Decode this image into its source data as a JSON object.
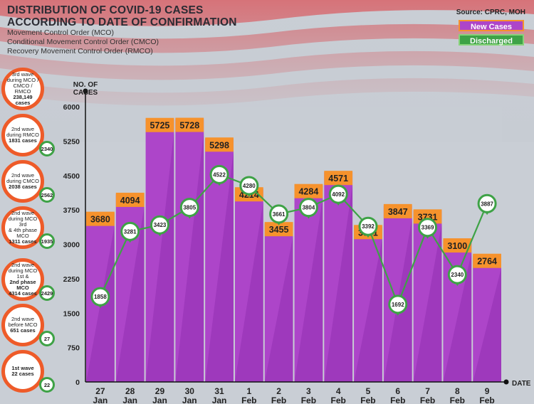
{
  "header": {
    "title_line1": "DISTRIBUTION OF COVID-19 CASES",
    "title_line2": "ACCORDING TO DATE OF CONFIRMATION",
    "sub1": "Movement Control Order (MCO)",
    "sub2": "Conditional Movement Control Order (CMCO)",
    "sub3": "Recovery Movement Control Order (RMCO)"
  },
  "source": "Source: CPRC, MOH",
  "colors": {
    "new": "#ad45c9",
    "new_border": "#f6922c",
    "discharged": "#3ea246"
  },
  "waves": [
    {
      "lines": [
        "3rd wave",
        "during MCO /",
        "CMCO / RMCO",
        "238,149",
        "cases"
      ],
      "badge": ""
    },
    {
      "lines": [
        "2nd wave",
        "during RMCO",
        "1831 cases"
      ],
      "badge": "2340"
    },
    {
      "lines": [
        "2nd wave",
        "during CMCO",
        "2038 cases"
      ],
      "badge": "2562"
    },
    {
      "lines": [
        "2nd wave",
        "during MCO 3rd",
        "& 4th phase MCO",
        "1311 cases"
      ],
      "badge": "1935"
    },
    {
      "lines": [
        "2nd wave",
        "during MCO 1st &",
        "2nd phase MCO",
        "4314 cases"
      ],
      "badge": "2429"
    },
    {
      "lines": [
        "2nd wave",
        "before MCO",
        "651 cases"
      ],
      "badge": "27"
    },
    {
      "lines": [
        "1st wave",
        "22 cases"
      ],
      "badge": "22"
    }
  ],
  "chart_data": {
    "type": "bar",
    "ylabel": "NO. OF CASES",
    "xlabel": "DATE",
    "ylim": [
      0,
      6000
    ],
    "yticks": [
      0,
      750,
      1500,
      2250,
      3000,
      3750,
      4500,
      5250,
      6000
    ],
    "categories": [
      [
        "27",
        "Jan"
      ],
      [
        "28",
        "Jan"
      ],
      [
        "29",
        "Jan"
      ],
      [
        "30",
        "Jan"
      ],
      [
        "31",
        "Jan"
      ],
      [
        "1",
        "Feb"
      ],
      [
        "2",
        "Feb"
      ],
      [
        "3",
        "Feb"
      ],
      [
        "4",
        "Feb"
      ],
      [
        "5",
        "Feb"
      ],
      [
        "6",
        "Feb"
      ],
      [
        "7",
        "Feb"
      ],
      [
        "8",
        "Feb"
      ],
      [
        "9",
        "Feb"
      ]
    ],
    "series": [
      {
        "name": "New Cases",
        "type": "bar",
        "values": [
          3680,
          4094,
          5725,
          5728,
          5298,
          4214,
          3455,
          4284,
          4571,
          3391,
          3847,
          3731,
          3100,
          2764
        ]
      },
      {
        "name": "Discharged",
        "type": "line",
        "values": [
          1858,
          3281,
          3423,
          3805,
          4522,
          4280,
          3661,
          3804,
          4092,
          3392,
          1692,
          3369,
          2340,
          3887
        ]
      }
    ]
  }
}
